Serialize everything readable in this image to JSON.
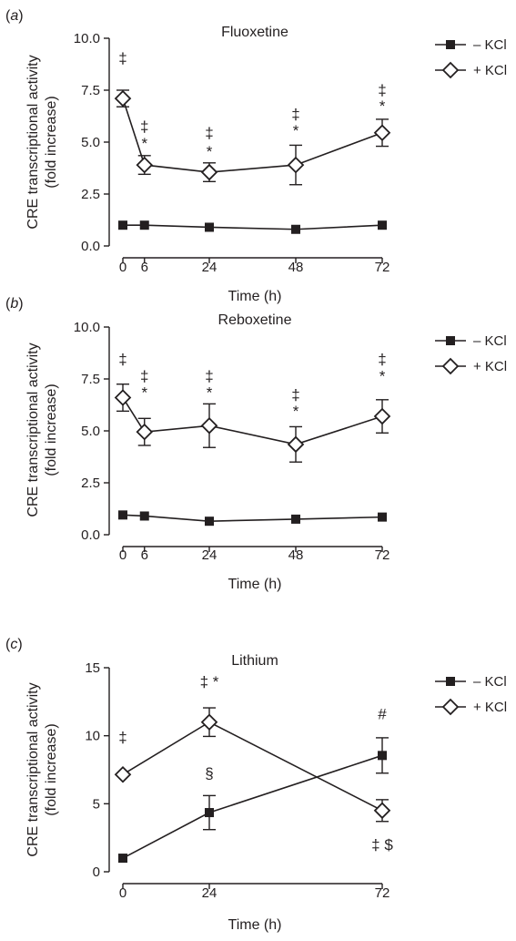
{
  "chart_data": [
    {
      "type": "line",
      "panel_label": "(a)",
      "title": "Fluoxetine",
      "xlabel": "Time (h)",
      "ylabel": "CRE transcriptional activity\n(fold increase)",
      "x": [
        0,
        6,
        24,
        48,
        72
      ],
      "xticks": [
        "0",
        "6",
        "24",
        "48",
        "72"
      ],
      "xlim": [
        0,
        72
      ],
      "yticks": [
        "0.0",
        "2.5",
        "5.0",
        "7.5",
        "10.0"
      ],
      "ylim": [
        0,
        10
      ],
      "legend_position": "right",
      "series": [
        {
          "name": "– KCl",
          "marker": "filled-square",
          "values": [
            1.0,
            1.0,
            0.9,
            0.8,
            1.0
          ],
          "errors": [
            0.1,
            0.1,
            0.1,
            0.1,
            0.1
          ]
        },
        {
          "name": "+ KCl",
          "marker": "open-diamond",
          "values": [
            7.1,
            3.9,
            3.55,
            3.9,
            5.45
          ],
          "errors": [
            0.4,
            0.45,
            0.45,
            0.95,
            0.65
          ]
        }
      ],
      "annotations": [
        {
          "x": 0,
          "y": 8.8,
          "text": "‡"
        },
        {
          "x": 6,
          "y": 5.5,
          "text": "‡"
        },
        {
          "x": 6,
          "y": 4.7,
          "text": "*"
        },
        {
          "x": 24,
          "y": 5.2,
          "text": "‡"
        },
        {
          "x": 24,
          "y": 4.3,
          "text": "*"
        },
        {
          "x": 48,
          "y": 6.1,
          "text": "‡"
        },
        {
          "x": 48,
          "y": 5.3,
          "text": "*"
        },
        {
          "x": 72,
          "y": 7.25,
          "text": "‡"
        },
        {
          "x": 72,
          "y": 6.5,
          "text": "*"
        }
      ]
    },
    {
      "type": "line",
      "panel_label": "(b)",
      "title": "Reboxetine",
      "xlabel": "Time (h)",
      "ylabel": "CRE transcriptional activity\n(fold increase)",
      "x": [
        0,
        6,
        24,
        48,
        72
      ],
      "xticks": [
        "0",
        "6",
        "24",
        "48",
        "72"
      ],
      "xlim": [
        0,
        72
      ],
      "yticks": [
        "0.0",
        "2.5",
        "5.0",
        "7.5",
        "10.0"
      ],
      "ylim": [
        0,
        10
      ],
      "legend_position": "right",
      "series": [
        {
          "name": "– KCl",
          "marker": "filled-square",
          "values": [
            0.95,
            0.9,
            0.65,
            0.75,
            0.85
          ],
          "errors": [
            0.1,
            0.1,
            0.1,
            0.1,
            0.1
          ]
        },
        {
          "name": "+ KCl",
          "marker": "open-diamond",
          "values": [
            6.6,
            4.95,
            5.25,
            4.35,
            5.7
          ],
          "errors": [
            0.65,
            0.65,
            1.05,
            0.85,
            0.8
          ]
        }
      ],
      "annotations": [
        {
          "x": 0,
          "y": 8.2,
          "text": "‡"
        },
        {
          "x": 6,
          "y": 7.4,
          "text": "‡"
        },
        {
          "x": 6,
          "y": 6.6,
          "text": "*"
        },
        {
          "x": 24,
          "y": 7.4,
          "text": "‡"
        },
        {
          "x": 24,
          "y": 6.6,
          "text": "*"
        },
        {
          "x": 48,
          "y": 6.5,
          "text": "‡"
        },
        {
          "x": 48,
          "y": 5.7,
          "text": "*"
        },
        {
          "x": 72,
          "y": 8.2,
          "text": "‡"
        },
        {
          "x": 72,
          "y": 7.4,
          "text": "*"
        }
      ]
    },
    {
      "type": "line",
      "panel_label": "(c)",
      "title": "Lithium",
      "xlabel": "Time (h)",
      "ylabel": "CRE transcriptional activity\n(fold increase)",
      "x": [
        0,
        24,
        72
      ],
      "xticks": [
        "0",
        "24",
        "72"
      ],
      "xlim": [
        0,
        72
      ],
      "yticks": [
        "0",
        "5",
        "10",
        "15"
      ],
      "ylim": [
        0,
        15
      ],
      "legend_position": "right",
      "series": [
        {
          "name": "– KCl",
          "marker": "filled-square",
          "values": [
            1.0,
            4.35,
            8.55
          ],
          "errors": [
            0.1,
            1.25,
            1.3
          ]
        },
        {
          "name": "+ KCl",
          "marker": "open-diamond",
          "values": [
            7.15,
            11.0,
            4.5
          ],
          "errors": [
            0.15,
            1.05,
            0.8
          ]
        }
      ],
      "annotations": [
        {
          "x": 0,
          "y": 9.5,
          "text": "‡"
        },
        {
          "x": 24,
          "y": 13.6,
          "text": "‡ *"
        },
        {
          "x": 24,
          "y": 6.85,
          "text": "§"
        },
        {
          "x": 72,
          "y": 11.2,
          "text": "#"
        },
        {
          "x": 72,
          "y": 1.6,
          "text": "‡ $"
        }
      ]
    }
  ]
}
